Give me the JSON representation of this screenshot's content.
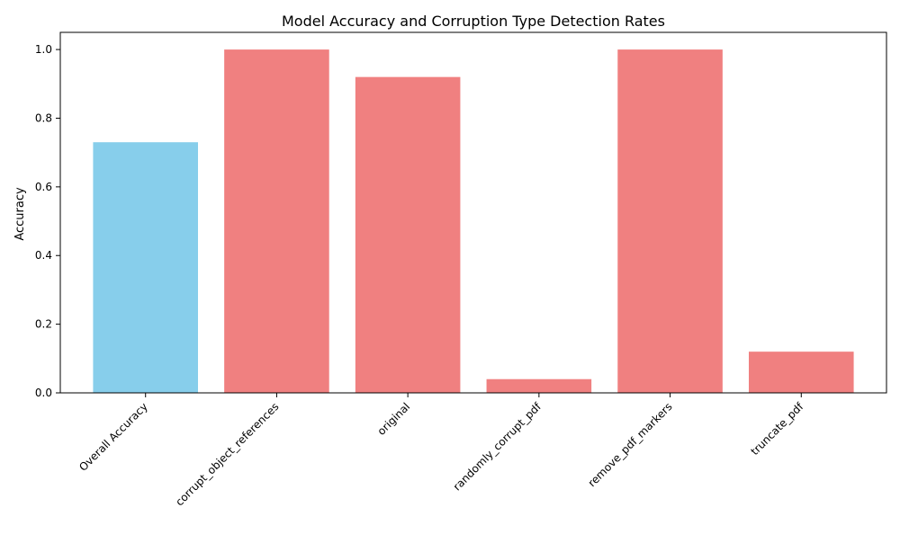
{
  "chart_data": {
    "type": "bar",
    "title": "Model Accuracy and Corruption Type Detection Rates",
    "xlabel": "",
    "ylabel": "Accuracy",
    "categories": [
      "Overall Accuracy",
      "corrupt_object_references",
      "original",
      "randomly_corrupt_pdf",
      "remove_pdf_markers",
      "truncate_pdf"
    ],
    "values": [
      0.73,
      1.0,
      0.92,
      0.04,
      1.0,
      0.12
    ],
    "bar_colors": [
      "#87ceeb",
      "#f08080",
      "#f08080",
      "#f08080",
      "#f08080",
      "#f08080"
    ],
    "ylim": [
      0,
      1.05
    ],
    "yticks": [
      "0.0",
      "0.2",
      "0.4",
      "0.6",
      "0.8",
      "1.0"
    ],
    "grid": false,
    "legend": "none"
  }
}
